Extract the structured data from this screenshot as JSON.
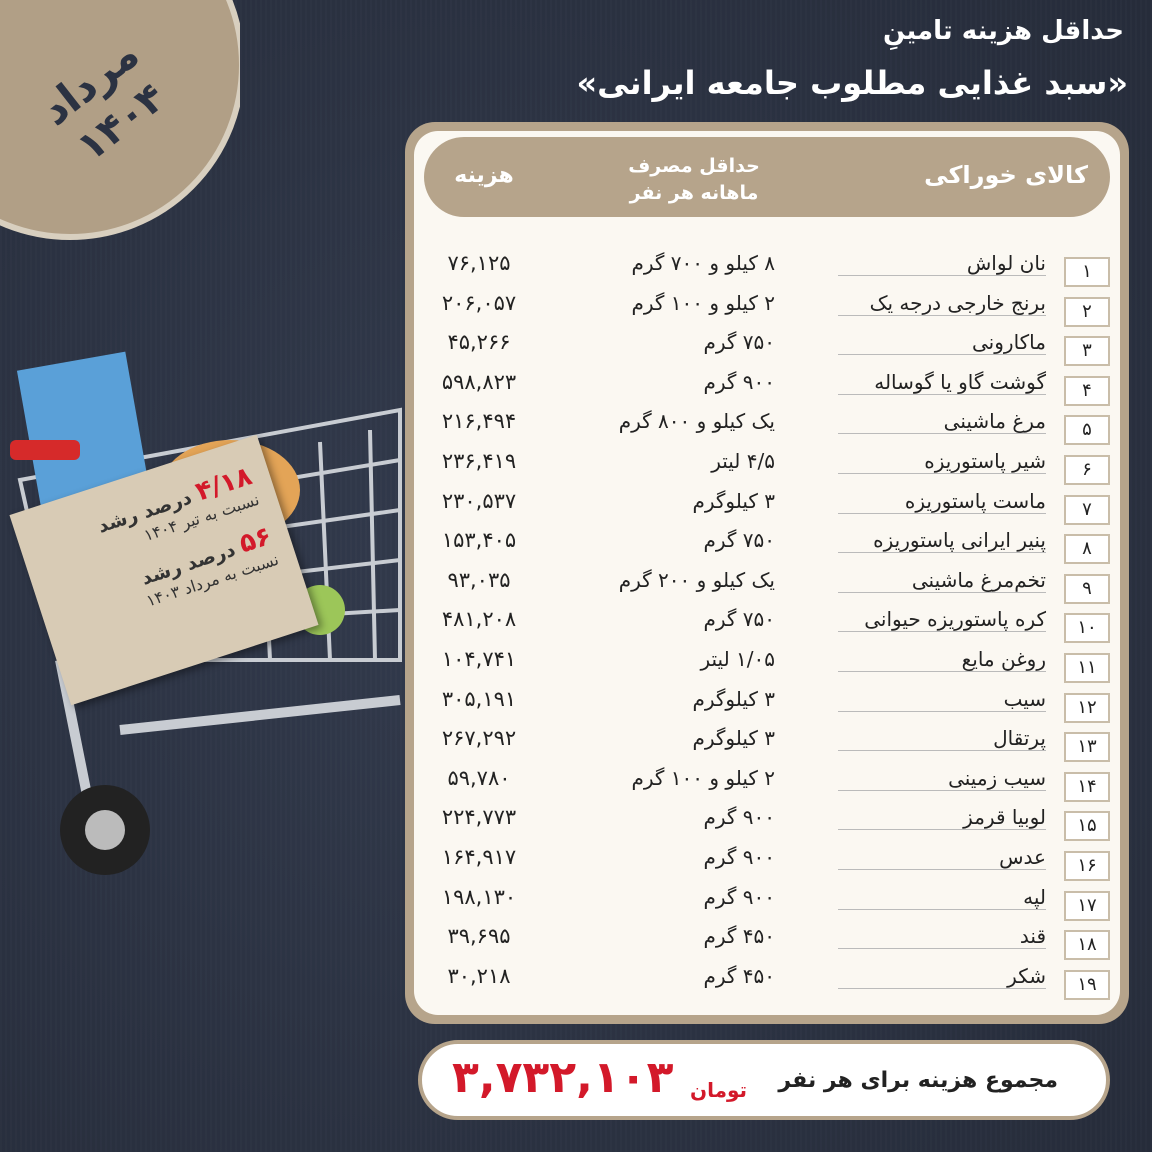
{
  "badge": {
    "month": "مرداد",
    "year": "۱۴۰۴"
  },
  "title": {
    "line1": "حداقل هزینه تامینِ",
    "line2": "«سبد غذایی مطلوب جامعه ایرانی»"
  },
  "table": {
    "headers": {
      "item": "کالای خوراکی",
      "amount": "حداقل مصرف ماهانه هر نفر",
      "cost": "هزینه"
    },
    "rows": [
      {
        "num": "۱",
        "name": "نان لواش",
        "amount": "۸ کیلو و ۷۰۰ گرم",
        "cost": "۷۶,۱۲۵"
      },
      {
        "num": "۲",
        "name": "برنج خارجی درجه یک",
        "amount": "۲ کیلو و ۱۰۰ گرم",
        "cost": "۲۰۶,۰۵۷"
      },
      {
        "num": "۳",
        "name": "ماکارونی",
        "amount": "۷۵۰ گرم",
        "cost": "۴۵,۲۶۶"
      },
      {
        "num": "۴",
        "name": "گوشت گاو یا گوساله",
        "amount": "۹۰۰ گرم",
        "cost": "۵۹۸,۸۲۳"
      },
      {
        "num": "۵",
        "name": "مرغ ماشینی",
        "amount": "یک کیلو و ۸۰۰ گرم",
        "cost": "۲۱۶,۴۹۴"
      },
      {
        "num": "۶",
        "name": "شیر پاستوریزه",
        "amount": "۴/۵ لیتر",
        "cost": "۲۳۶,۴۱۹"
      },
      {
        "num": "۷",
        "name": "ماست پاستوریزه",
        "amount": "۳ کیلوگرم",
        "cost": "۲۳۰,۵۳۷"
      },
      {
        "num": "۸",
        "name": "پنیر ایرانی پاستوریزه",
        "amount": "۷۵۰ گرم",
        "cost": "۱۵۳,۴۰۵"
      },
      {
        "num": "۹",
        "name": "تخم‌مرغ ماشینی",
        "amount": "یک کیلو و ۲۰۰ گرم",
        "cost": "۹۳,۰۳۵"
      },
      {
        "num": "۱۰",
        "name": "کره پاستوریزه حیوانی",
        "amount": "۷۵۰ گرم",
        "cost": "۴۸۱,۲۰۸"
      },
      {
        "num": "۱۱",
        "name": "روغن مایع",
        "amount": "۱/۰۵ لیتر",
        "cost": "۱۰۴,۷۴۱"
      },
      {
        "num": "۱۲",
        "name": "سیب",
        "amount": "۳ کیلوگرم",
        "cost": "۳۰۵,۱۹۱"
      },
      {
        "num": "۱۳",
        "name": "پرتقال",
        "amount": "۳ کیلوگرم",
        "cost": "۲۶۷,۲۹۲"
      },
      {
        "num": "۱۴",
        "name": "سیب زمینی",
        "amount": "۲ کیلو و ۱۰۰ گرم",
        "cost": "۵۹,۷۸۰"
      },
      {
        "num": "۱۵",
        "name": "لوبیا قرمز",
        "amount": "۹۰۰ گرم",
        "cost": "۲۲۴,۷۷۳"
      },
      {
        "num": "۱۶",
        "name": "عدس",
        "amount": "۹۰۰ گرم",
        "cost": "۱۶۴,۹۱۷"
      },
      {
        "num": "۱۷",
        "name": "لپه",
        "amount": "۹۰۰ گرم",
        "cost": "۱۹۸,۱۳۰"
      },
      {
        "num": "۱۸",
        "name": "قند",
        "amount": "۴۵۰ گرم",
        "cost": "۳۹,۶۹۵"
      },
      {
        "num": "۱۹",
        "name": "شکر",
        "amount": "۴۵۰ گرم",
        "cost": "۳۰,۲۱۸"
      }
    ]
  },
  "total": {
    "label": "مجموع هزینه برای هر نفر",
    "value": "۳,۷۳۲,۱۰۳",
    "unit": "تومان"
  },
  "tag": {
    "growth1_value": "۴/۱۸",
    "growth1_label": "درصد رشد",
    "growth1_ref": "نسبت به تیر ۱۴۰۴",
    "growth2_value": "۵۶",
    "growth2_label": "درصد رشد",
    "growth2_ref": "نسبت به مرداد ۱۴۰۳"
  },
  "colors": {
    "background": "#2b3242",
    "accent": "#b6a48b",
    "highlight": "#d3192a",
    "panel": "#fbf8f2"
  }
}
